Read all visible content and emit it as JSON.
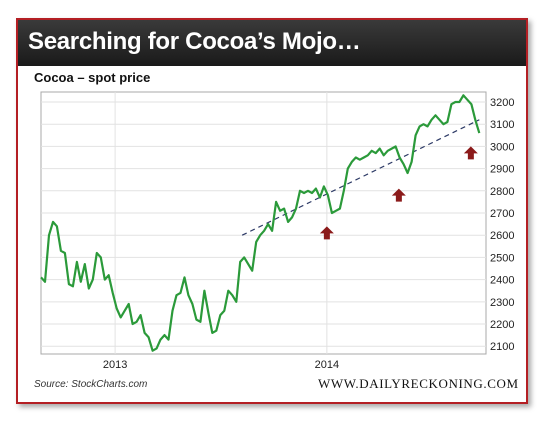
{
  "banner": {
    "title": "Searching for Cocoa’s Mojo…"
  },
  "chart_data": {
    "type": "line",
    "title": "Cocoa – spot price",
    "xlabel": "",
    "ylabel": "",
    "x_ticks": [
      "2013",
      "2014"
    ],
    "y_ticks": [
      2100,
      2200,
      2300,
      2400,
      2500,
      2600,
      2700,
      2800,
      2900,
      3000,
      3100,
      3200
    ],
    "ylim": [
      2065,
      3245
    ],
    "grid": true,
    "series": [
      {
        "values": [
          2410,
          2390,
          2600,
          2660,
          2640,
          2530,
          2520,
          2380,
          2370,
          2480,
          2390,
          2470,
          2360,
          2400,
          2520,
          2500,
          2400,
          2420,
          2340,
          2270,
          2230,
          2260,
          2290,
          2200,
          2210,
          2240,
          2160,
          2140,
          2080,
          2090,
          2130,
          2150,
          2130,
          2260,
          2330,
          2340,
          2410,
          2330,
          2290,
          2220,
          2210,
          2350,
          2250,
          2160,
          2170,
          2240,
          2260,
          2350,
          2330,
          2300,
          2480,
          2500,
          2470,
          2440,
          2570,
          2600,
          2620,
          2650,
          2620,
          2750,
          2710,
          2720,
          2660,
          2680,
          2720,
          2800,
          2790,
          2800,
          2790,
          2810,
          2770,
          2820,
          2780,
          2700,
          2710,
          2720,
          2800,
          2900,
          2930,
          2950,
          2940,
          2950,
          2960,
          2980,
          2970,
          2990,
          2960,
          2980,
          2990,
          3000,
          2950,
          2920,
          2880,
          2930,
          3050,
          3090,
          3100,
          3090,
          3120,
          3140,
          3120,
          3100,
          3110,
          3190,
          3200,
          3200,
          3230,
          3210,
          3190,
          3120,
          3060
        ],
        "color": "#2b9a3a"
      }
    ],
    "trendline": {
      "from": [
        2013.6,
        2600
      ],
      "to": [
        2014.72,
        3120
      ],
      "style": "dashed",
      "color": "#2d3a66"
    },
    "markers": [
      {
        "shape": "up-arrow",
        "x": 2014.0,
        "y": 2640,
        "color": "#8b1a1a"
      },
      {
        "shape": "up-arrow",
        "x": 2014.34,
        "y": 2810,
        "color": "#8b1a1a"
      },
      {
        "shape": "up-arrow",
        "x": 2014.68,
        "y": 3000,
        "color": "#8b1a1a"
      }
    ]
  },
  "footer": {
    "source": "Source: StockCharts.com",
    "brand": "WWW.DAILYRECKONING.COM"
  }
}
